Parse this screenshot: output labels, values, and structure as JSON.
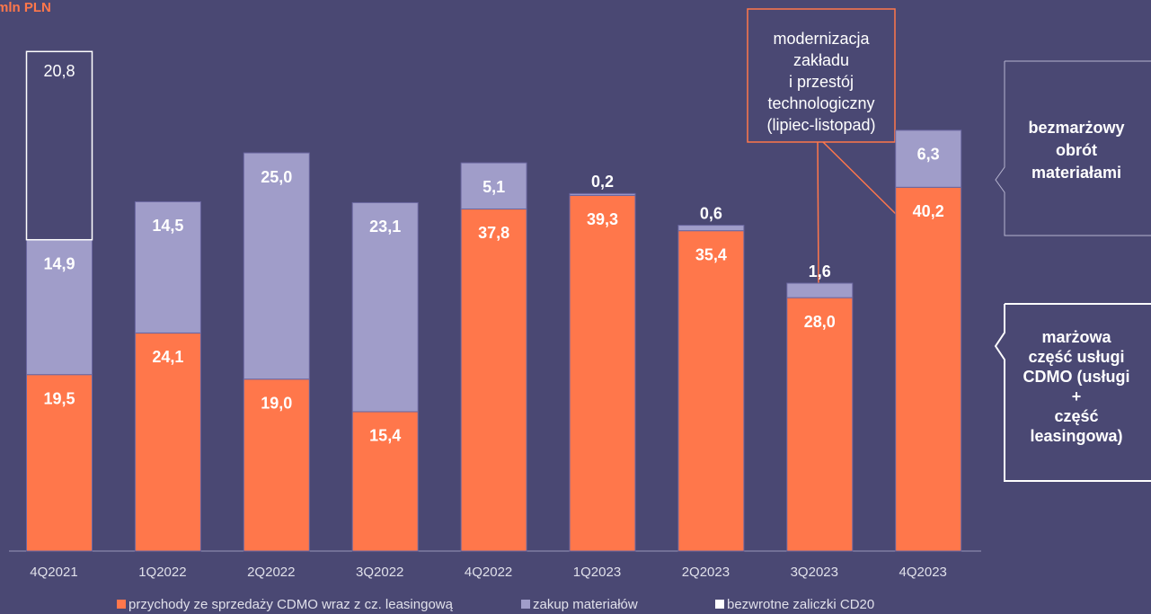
{
  "chart_data": {
    "type": "bar",
    "stacked": true,
    "title": "mln PLN",
    "categories": [
      "4Q2021",
      "1Q2022",
      "2Q2022",
      "3Q2022",
      "4Q2022",
      "1Q2023",
      "2Q2023",
      "3Q2023",
      "4Q2023"
    ],
    "ylim": [
      0,
      60
    ],
    "series": [
      {
        "name": "przychody ze sprzedaży CDMO wraz z cz. leasingową",
        "color": "#ff774b",
        "values": [
          19.5,
          24.1,
          19.0,
          15.4,
          37.8,
          39.3,
          35.4,
          28.0,
          40.2
        ],
        "value_labels": [
          "19,5",
          "24,1",
          "19,0",
          "15,4",
          "37,8",
          "39,3",
          "35,4",
          "28,0",
          "40,2"
        ]
      },
      {
        "name": "zakup materiałów",
        "color": "#a09dc9",
        "values": [
          14.9,
          14.5,
          25.0,
          23.1,
          5.1,
          0.2,
          0.6,
          1.6,
          6.3
        ],
        "value_labels": [
          "14,9",
          "14,5",
          "25,0",
          "23,1",
          "5,1",
          "0,2",
          "0,6",
          "1,6",
          "6,3"
        ]
      },
      {
        "name": "bezwrotne zaliczki CD20",
        "color": "#ffffff",
        "values": [
          20.8,
          null,
          null,
          null,
          null,
          null,
          null,
          null,
          null
        ],
        "value_labels": [
          "20,8",
          null,
          null,
          null,
          null,
          null,
          null,
          null,
          null
        ]
      }
    ],
    "annotation": [
      "modernizacja",
      "zakładu",
      "i przestój",
      "technologiczny",
      "(lipiec-listopad)"
    ],
    "brackets": [
      {
        "lines": [
          "bezmarżowy",
          "obrót",
          "materiałami"
        ]
      },
      {
        "lines": [
          "marżowa",
          "część usługi",
          "CDMO (usługi",
          "+",
          "część",
          "leasingowa)"
        ]
      }
    ]
  }
}
